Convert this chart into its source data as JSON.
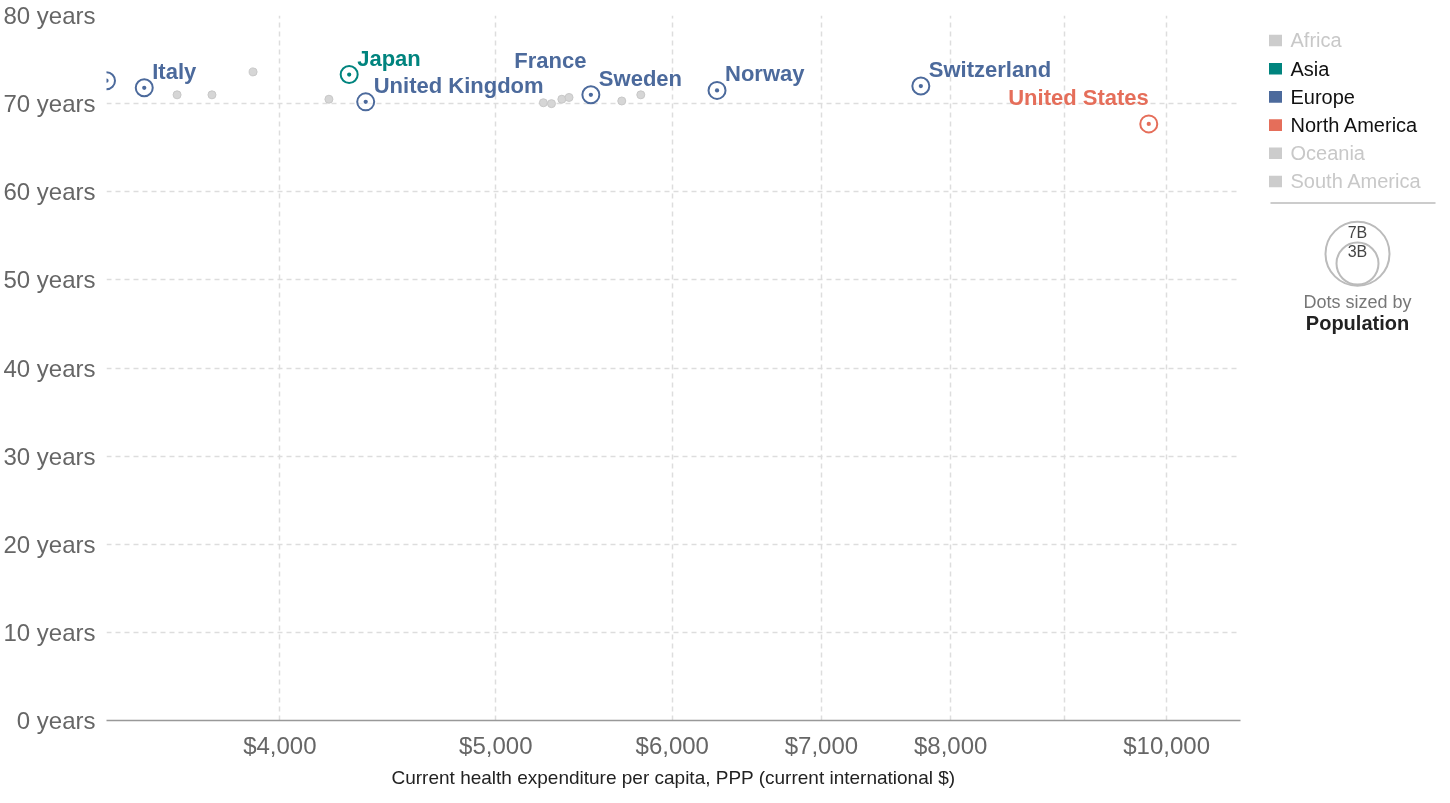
{
  "chart_data": {
    "type": "scatter",
    "xlabel": "Current health expenditure per capita, PPP (current international $)",
    "log": "x",
    "xlim": [
      3344,
      10793
    ],
    "ylim": [
      0,
      80
    ],
    "xticks": [
      {
        "value": 4000,
        "label": "$4,000"
      },
      {
        "value": 5000,
        "label": "$5,000"
      },
      {
        "value": 6000,
        "label": "$6,000"
      },
      {
        "value": 7000,
        "label": "$7,000"
      },
      {
        "value": 8000,
        "label": "$8,000"
      },
      {
        "value": 9000,
        "label": null
      },
      {
        "value": 10000,
        "label": "$10,000"
      }
    ],
    "yticks": [
      {
        "value": 0,
        "label": "0 years"
      },
      {
        "value": 10,
        "label": "10 years"
      },
      {
        "value": 20,
        "label": "20 years"
      },
      {
        "value": 30,
        "label": "30 years"
      },
      {
        "value": 40,
        "label": "40 years"
      },
      {
        "value": 50,
        "label": "50 years"
      },
      {
        "value": 60,
        "label": "60 years"
      },
      {
        "value": 70,
        "label": "70 years"
      },
      {
        "value": 80,
        "label": "80 years"
      }
    ],
    "grid": true,
    "legend": "top right",
    "marker": "circle",
    "series": [
      {
        "name": "Africa",
        "color": "#cccccc"
      },
      {
        "name": "Asia",
        "color": "#00847e",
        "x": [
          4297
        ],
        "values": [
          73.3
        ]
      },
      {
        "name": "Europe",
        "color": "#4c6a9c",
        "x": [
          3344,
          3477,
          4371,
          5516,
          6284,
          7757
        ],
        "values": [
          72.6,
          71.8,
          70.2,
          71.0,
          71.5,
          72.0
        ]
      },
      {
        "name": "North America",
        "color": "#e56e5a",
        "x": [
          9817
        ],
        "values": [
          67.7
        ]
      },
      {
        "name": "Oceania",
        "color": "#cccccc"
      },
      {
        "name": "South America",
        "color": "#cccccc"
      },
      {
        "color": "#d6d6d6",
        "x": [
          3597,
          3729,
          3891,
          4208,
          5252,
          5296,
          5353,
          5393,
          5695,
          5808
        ],
        "values": [
          71.0,
          71.0,
          73.6,
          70.5,
          70.1,
          70.0,
          70.5,
          70.7,
          70.3,
          71.0
        ]
      }
    ],
    "annotations": [
      {
        "text": "Italy",
        "x": 3477,
        "y": 71.8
      },
      {
        "text": "Japan",
        "x": 4297,
        "y": 73.3
      },
      {
        "text": "United Kingdom",
        "x": 4371,
        "y": 70.2
      },
      "France",
      {
        "text": "Sweden",
        "x": 5516,
        "y": 71.0
      },
      {
        "text": "Norway",
        "x": 6284,
        "y": 71.5
      },
      {
        "text": "Switzerland",
        "x": 7757,
        "y": 72.0
      },
      {
        "text": "United States",
        "x": 9817,
        "y": 67.7
      },
      "7B",
      "3B",
      "Dots sized by",
      "Population"
    ]
  }
}
